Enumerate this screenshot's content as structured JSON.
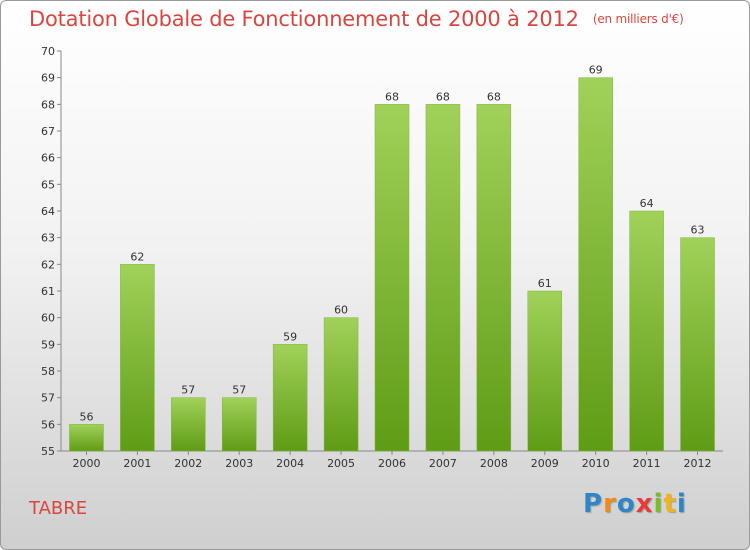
{
  "title": "Dotation Globale de Fonctionnement de 2000 à 2012",
  "subtitle": "(en milliers d'€)",
  "commune": "TABRE",
  "logo": {
    "text": "Proxiti",
    "letters": [
      "P",
      "r",
      "o",
      "x",
      "i",
      "t",
      "i"
    ],
    "colors": [
      "#2f86c7",
      "#f08a1c",
      "#2f86c7",
      "#e63b3b",
      "#7dbb2e",
      "#f0b41c",
      "#2f86c7"
    ]
  },
  "colors": {
    "title": "#d9463f",
    "bar_top": "#a1d15a",
    "bar_bottom": "#5f9c15"
  },
  "chart_data": {
    "type": "bar",
    "categories": [
      "2000",
      "2001",
      "2002",
      "2003",
      "2004",
      "2005",
      "2006",
      "2007",
      "2008",
      "2009",
      "2010",
      "2011",
      "2012"
    ],
    "values": [
      56,
      62,
      57,
      57,
      59,
      60,
      68,
      68,
      68,
      61,
      69,
      64,
      63
    ],
    "title": "Dotation Globale de Fonctionnement de 2000 à 2012",
    "subtitle": "(en milliers d'€)",
    "xlabel": "",
    "ylabel": "",
    "ylim": [
      55,
      70
    ],
    "yticks": [
      55,
      56,
      57,
      58,
      59,
      60,
      61,
      62,
      63,
      64,
      65,
      66,
      67,
      68,
      69,
      70
    ],
    "grid": false,
    "legend": "none",
    "data_labels": true
  }
}
